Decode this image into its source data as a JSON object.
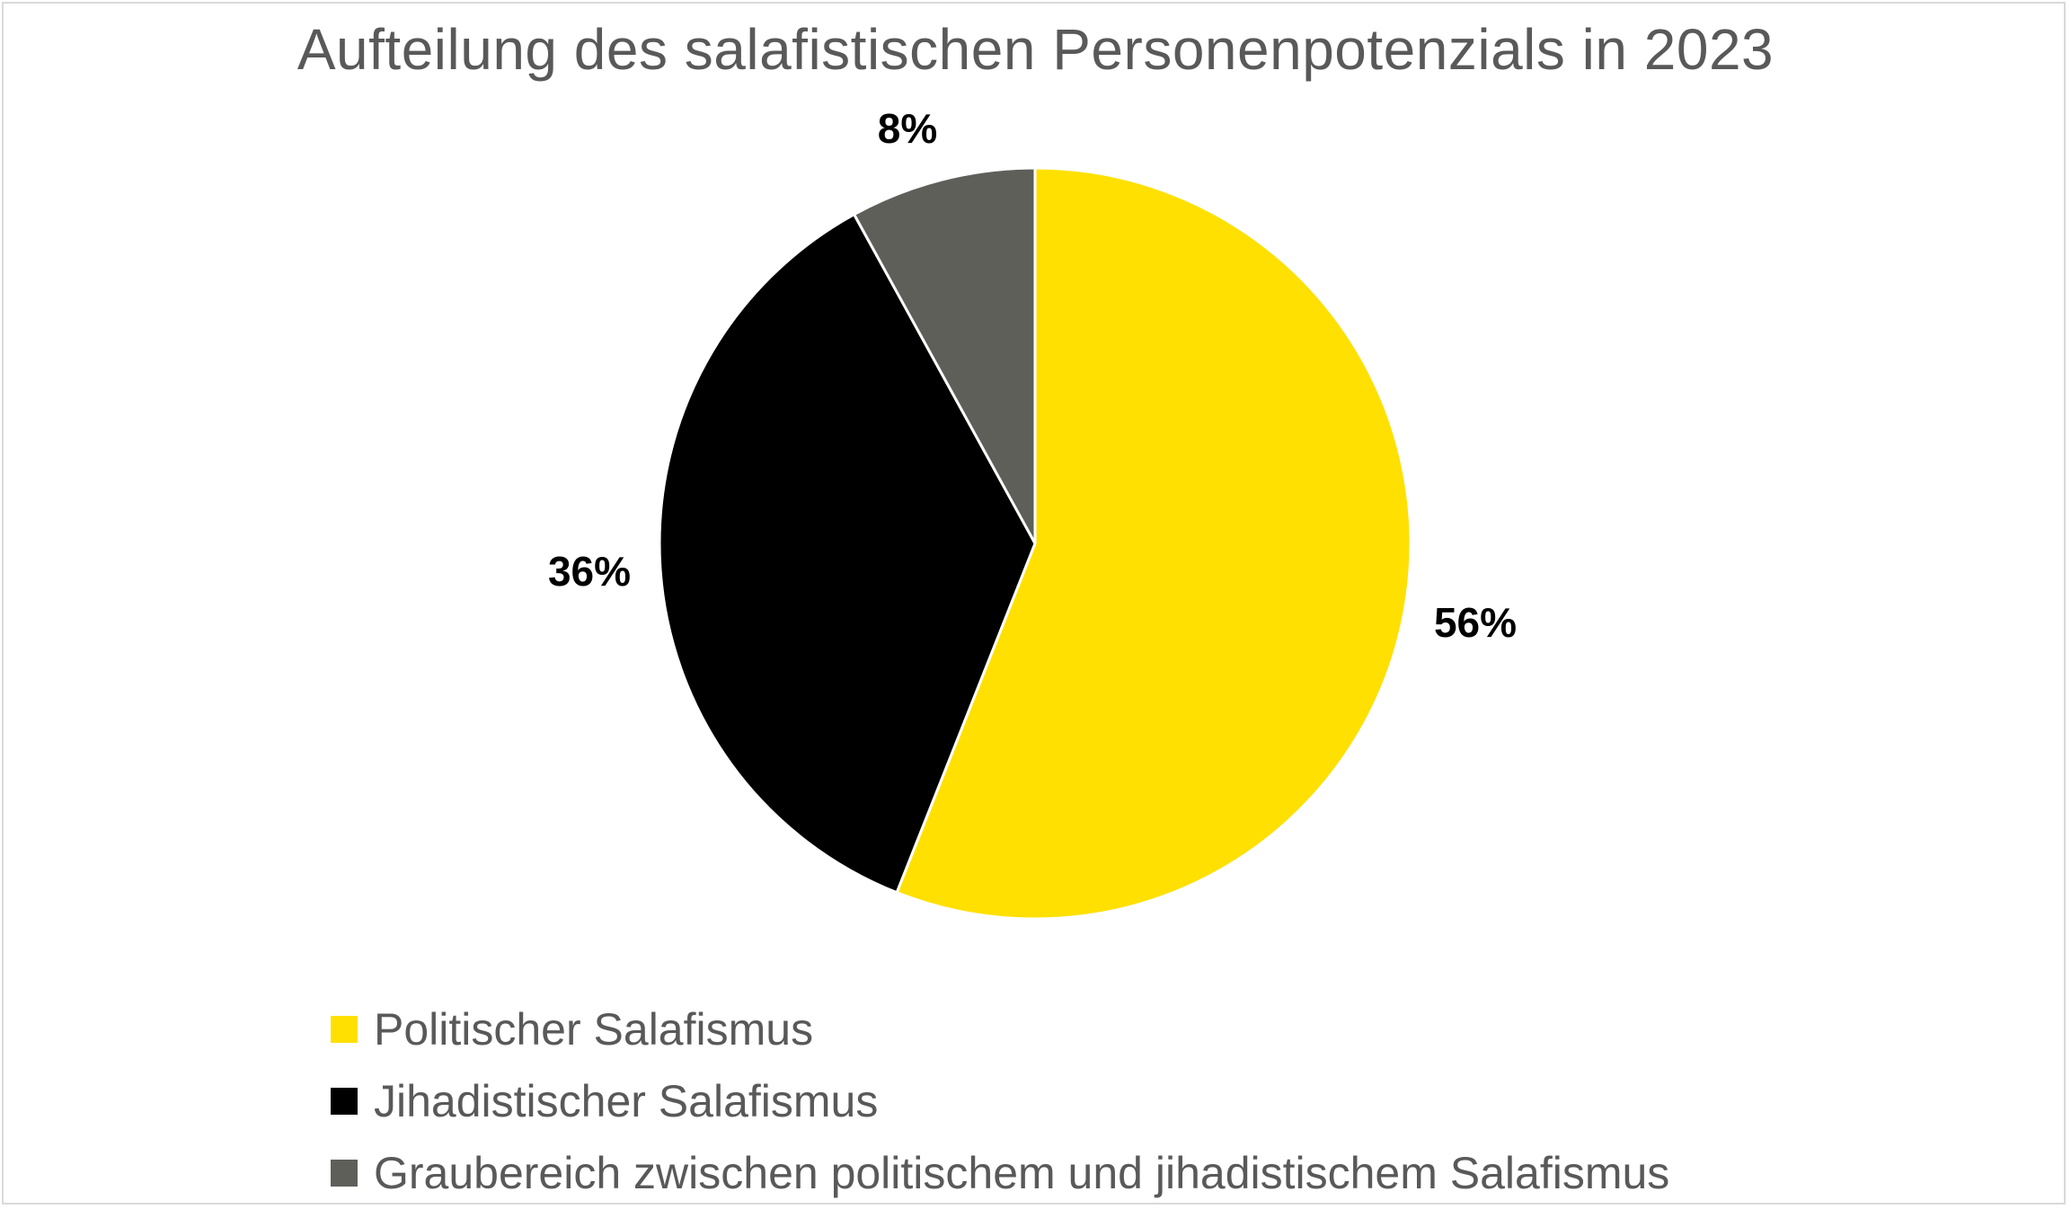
{
  "chart_data": {
    "type": "pie",
    "title": "Aufteilung des salafistischen Personenpotenzials in 2023",
    "categories": [
      "Politischer Salafismus",
      "Jihadistischer Salafismus",
      "Graubereich zwischen politischem und jihadistischem Salafismus"
    ],
    "values": [
      56,
      36,
      8
    ],
    "data_labels": [
      "56%",
      "36%",
      "8%"
    ],
    "colors": [
      "#FFE000",
      "#000000",
      "#5F5F5A"
    ],
    "legend_position": "bottom-left",
    "start_angle": "12 o'clock",
    "direction": "clockwise"
  }
}
